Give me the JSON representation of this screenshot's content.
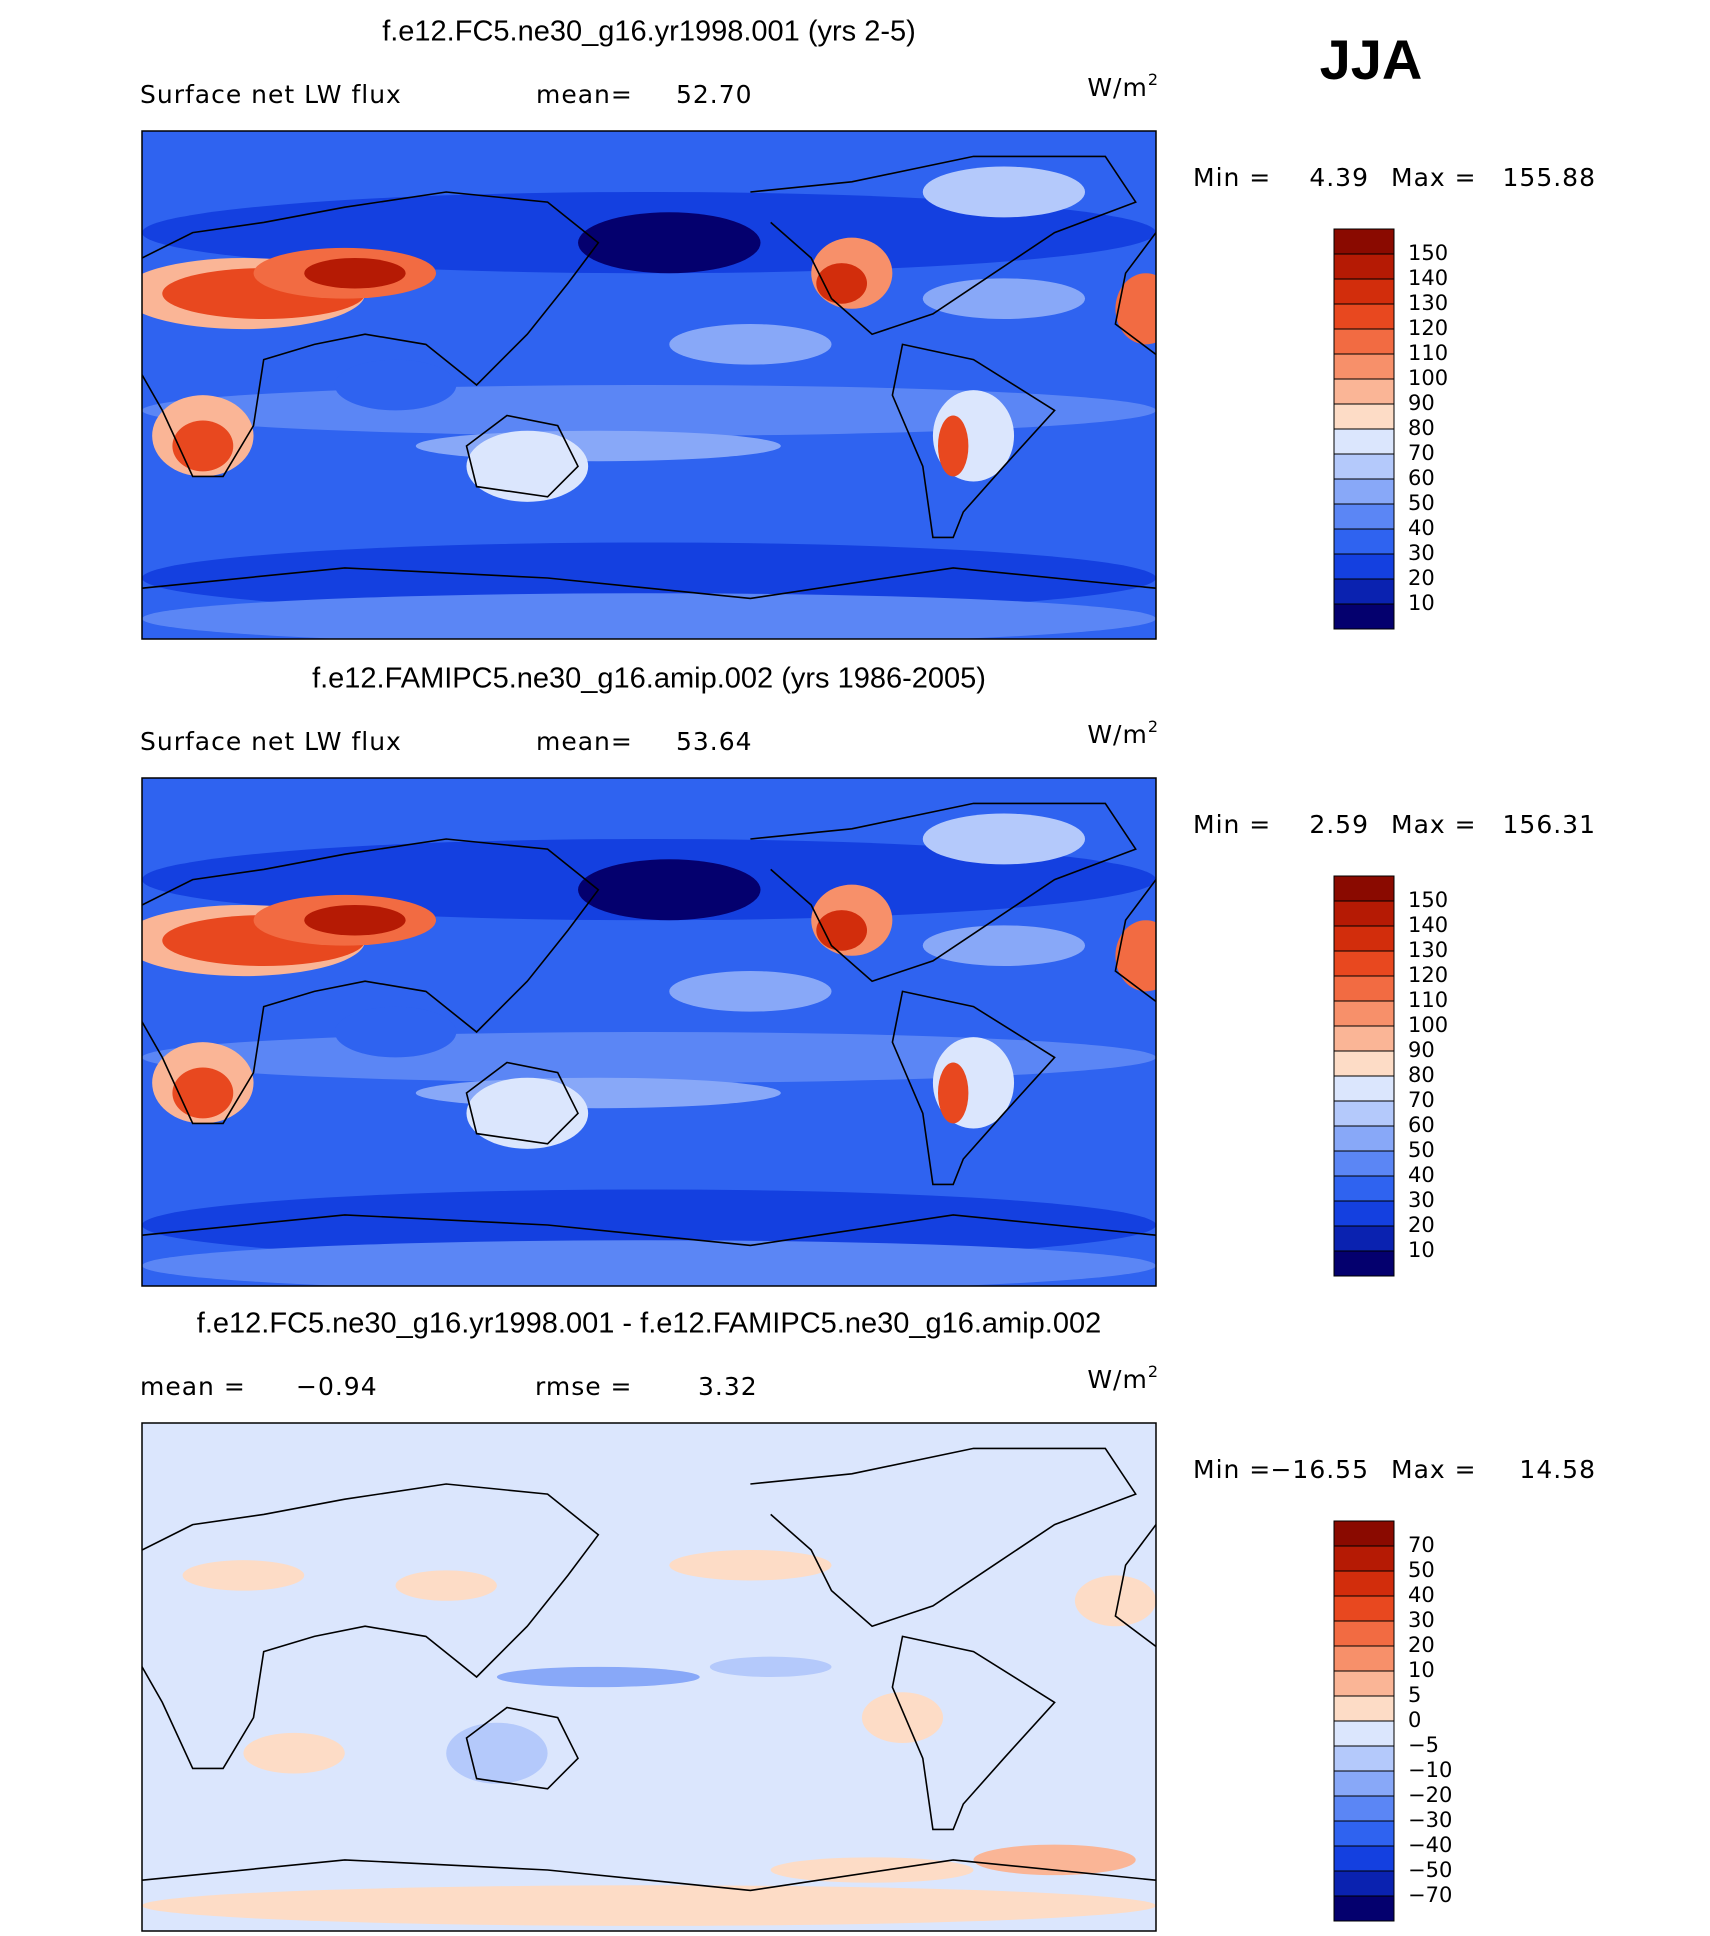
{
  "header": {
    "season": "JJA"
  },
  "panels": [
    {
      "title": "f.e12.FC5.ne30_g16.yr1998.001 (yrs 2-5)",
      "stats": [
        {
          "label": "Surface net LW flux"
        },
        {
          "label": "mean=",
          "value": "52.70"
        }
      ],
      "units": "W/m",
      "units_exp": "2",
      "min_label": "Min =",
      "min": "4.39",
      "max_label": "Max =",
      "max": "155.88",
      "colorbar": {
        "labels": [
          "150",
          "140",
          "130",
          "120",
          "110",
          "100",
          "90",
          "80",
          "70",
          "60",
          "50",
          "40",
          "30",
          "20",
          "10"
        ],
        "colors": [
          "#8a0a00",
          "#b51a04",
          "#d22d0c",
          "#e8481f",
          "#f26b42",
          "#f7906a",
          "#fab596",
          "#fddcc6",
          "#dbe6fd",
          "#b4c9fb",
          "#88a8f8",
          "#5b86f5",
          "#2f63f0",
          "#1440e0",
          "#0a22b0",
          "#04006e"
        ]
      }
    },
    {
      "title": "f.e12.FAMIPC5.ne30_g16.amip.002 (yrs 1986-2005)",
      "stats": [
        {
          "label": "Surface net LW flux"
        },
        {
          "label": "mean=",
          "value": "53.64"
        }
      ],
      "units": "W/m",
      "units_exp": "2",
      "min_label": "Min =",
      "min": "2.59",
      "max_label": "Max =",
      "max": "156.31",
      "colorbar": {
        "labels": [
          "150",
          "140",
          "130",
          "120",
          "110",
          "100",
          "90",
          "80",
          "70",
          "60",
          "50",
          "40",
          "30",
          "20",
          "10"
        ],
        "colors": [
          "#8a0a00",
          "#b51a04",
          "#d22d0c",
          "#e8481f",
          "#f26b42",
          "#f7906a",
          "#fab596",
          "#fddcc6",
          "#dbe6fd",
          "#b4c9fb",
          "#88a8f8",
          "#5b86f5",
          "#2f63f0",
          "#1440e0",
          "#0a22b0",
          "#04006e"
        ]
      }
    },
    {
      "title": "f.e12.FC5.ne30_g16.yr1998.001 - f.e12.FAMIPC5.ne30_g16.amip.002",
      "stats": [
        {
          "label": "mean =",
          "value": "−0.94"
        },
        {
          "label": "rmse =",
          "value": "3.32"
        }
      ],
      "units": "W/m",
      "units_exp": "2",
      "min_label": "Min =",
      "min": "−16.55",
      "max_label": "Max =",
      "max": "14.58",
      "colorbar": {
        "labels": [
          "70",
          "50",
          "40",
          "30",
          "20",
          "10",
          "5",
          "0",
          "−5",
          "−10",
          "−20",
          "−30",
          "−40",
          "−50",
          "−70"
        ],
        "colors": [
          "#8a0a00",
          "#b51a04",
          "#d22d0c",
          "#e8481f",
          "#f26b42",
          "#f7906a",
          "#fab596",
          "#fddcc6",
          "#dbe6fd",
          "#b4c9fb",
          "#88a8f8",
          "#5b86f5",
          "#2f63f0",
          "#1440e0",
          "#0a22b0",
          "#04006e"
        ]
      }
    }
  ]
}
